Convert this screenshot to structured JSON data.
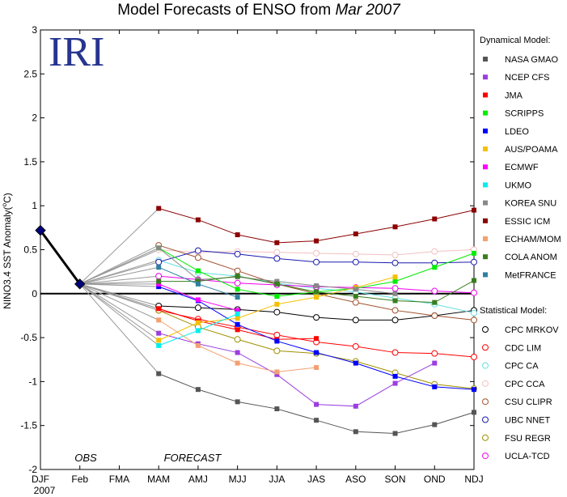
{
  "chart_data": {
    "type": "line",
    "title": "Model Forecasts of ENSO from",
    "title_date": "Mar 2007",
    "logo_text": "IRI",
    "ylabel": "NINO3.4 SST Anomaly(",
    "ylabel_unit_sup": "o",
    "ylabel_unit": "C)",
    "year_label": "2007",
    "obs_label": "OBS",
    "forecast_label": "FORECAST",
    "categories": [
      "DJF",
      "Feb",
      "FMA",
      "MAM",
      "AMJ",
      "MJJ",
      "JJA",
      "JAS",
      "ASO",
      "SON",
      "OND",
      "NDJ"
    ],
    "ylim": [
      -2,
      3
    ],
    "yticks": [
      "-2",
      "-1.5",
      "-1",
      "-0.5",
      "0",
      "0.5",
      "1",
      "1.5",
      "2",
      "2.5",
      "3"
    ],
    "observed": {
      "values": [
        0.72,
        0.11
      ],
      "color": "#000080"
    },
    "forecast_origin_index": 1,
    "forecast_origin_value": 0.11,
    "dynamical_header": "Dynamical Model:",
    "statistical_header": "Statistical Model:",
    "dynamical": [
      {
        "name": "NASA GMAO",
        "color": "#555555",
        "values": [
          -0.91,
          -1.09,
          -1.23,
          -1.31,
          -1.44,
          -1.57,
          -1.59,
          -1.49,
          -1.35
        ]
      },
      {
        "name": "NCEP CFS",
        "color": "#9a3ee0",
        "values": [
          -0.45,
          -0.57,
          -0.67,
          -0.92,
          -1.26,
          -1.28,
          -1.02,
          -0.79
        ]
      },
      {
        "name": "JMA",
        "color": "#ff0000",
        "values": [
          -0.17,
          -0.31,
          -0.41,
          -0.52,
          -0.51
        ]
      },
      {
        "name": "SCRIPPS",
        "color": "#00ee00",
        "values": [
          0.52,
          0.26,
          0.05,
          -0.03,
          0.02,
          0.06,
          0.14,
          0.3,
          0.46
        ]
      },
      {
        "name": "LDEO",
        "color": "#0000ff",
        "values": [
          0.08,
          -0.08,
          -0.35,
          -0.54,
          -0.67,
          -0.79,
          -0.94,
          -1.06,
          -1.09
        ]
      },
      {
        "name": "AUS/POAMA",
        "color": "#f5c000",
        "values": [
          -0.53,
          -0.33,
          -0.28,
          -0.12,
          -0.04,
          0.07,
          0.19
        ]
      },
      {
        "name": "ECMWF",
        "color": "#ff00ff",
        "values": [
          0.11,
          -0.07,
          -0.19
        ]
      },
      {
        "name": "UKMO",
        "color": "#00eeee",
        "values": [
          -0.59,
          -0.42,
          -0.23
        ]
      },
      {
        "name": "KOREA SNU",
        "color": "#888888",
        "values": [
          0.52,
          0.16,
          0.19,
          0.14,
          0.09,
          0.05,
          0.0
        ]
      },
      {
        "name": "ESSIC ICM",
        "color": "#8b0000",
        "values": [
          0.97,
          0.84,
          0.67,
          0.58,
          0.6,
          0.68,
          0.76,
          0.85,
          0.95
        ]
      },
      {
        "name": "ECHAM/MOM",
        "color": "#f4a070",
        "values": [
          -0.3,
          -0.59,
          -0.79,
          -0.89,
          -0.84
        ]
      },
      {
        "name": "COLA ANOM",
        "color": "#3a7d1e",
        "values": [
          0.14,
          0.14,
          0.2,
          0.11,
          0.02,
          -0.03,
          -0.08,
          -0.1,
          0.15
        ]
      },
      {
        "name": "MetFRANCE",
        "color": "#3080a0",
        "values": [
          0.3,
          0.11,
          -0.04
        ]
      }
    ],
    "statistical": [
      {
        "name": "CPC MRKOV",
        "color": "#000000",
        "values": [
          -0.14,
          -0.16,
          -0.18,
          -0.21,
          -0.27,
          -0.3,
          -0.3,
          -0.25,
          -0.19
        ]
      },
      {
        "name": "CDC LIM",
        "color": "#ff0000",
        "values": [
          -0.19,
          -0.29,
          -0.38,
          -0.47,
          -0.55,
          -0.6,
          -0.67,
          -0.68,
          -0.72
        ]
      },
      {
        "name": "CPC CA",
        "color": "#66dddd",
        "values": [
          0.38,
          0.24,
          0.2,
          0.12,
          0.06,
          0.02,
          -0.05,
          -0.12,
          -0.22
        ]
      },
      {
        "name": "CPC CCA",
        "color": "#f4c0c0",
        "values": [
          0.5,
          0.47,
          0.48,
          0.47,
          0.46,
          0.45,
          0.44,
          0.48,
          0.5
        ]
      },
      {
        "name": "CSU CLIPR",
        "color": "#a0522d",
        "values": [
          0.55,
          0.41,
          0.26,
          0.11,
          0.0,
          -0.1,
          -0.19,
          -0.25,
          -0.3
        ]
      },
      {
        "name": "UBC NNET",
        "color": "#1a1ab0",
        "values": [
          0.36,
          0.49,
          0.45,
          0.4,
          0.36,
          0.36,
          0.35,
          0.35,
          0.36
        ]
      },
      {
        "name": "FSU REGR",
        "color": "#a09000",
        "values": [
          -0.19,
          -0.38,
          -0.52,
          -0.65,
          -0.68,
          -0.77,
          -0.9,
          -1.03,
          -1.08
        ]
      },
      {
        "name": "UCLA-TCD",
        "color": "#ee00ee",
        "values": [
          0.2,
          0.16,
          0.12,
          0.1,
          0.08,
          0.07,
          0.06,
          0.03,
          0.01
        ]
      }
    ]
  }
}
